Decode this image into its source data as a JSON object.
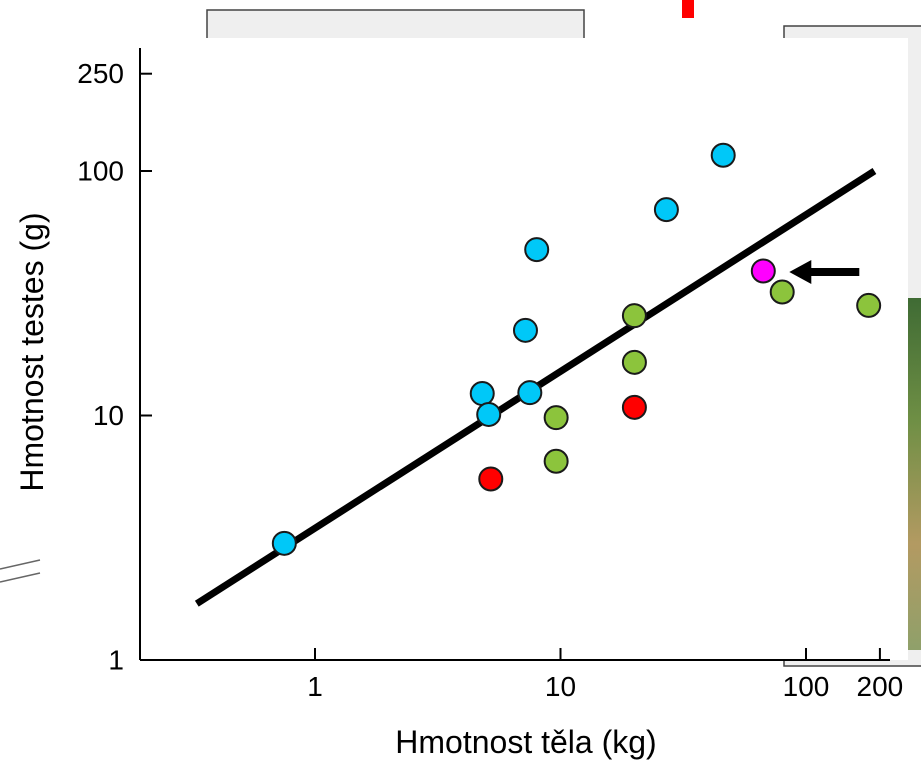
{
  "chart_data": {
    "type": "scatter",
    "title": "",
    "xlabel": "Hmotnost těla (kg)",
    "ylabel": "Hmotnost testes (g)",
    "xscale": "log",
    "yscale": "log",
    "xlim": [
      0.1,
      200
    ],
    "ylim": [
      1,
      250
    ],
    "xticks": [
      {
        "value": 1,
        "label": "1"
      },
      {
        "value": 10,
        "label": "10"
      },
      {
        "value": 100,
        "label": "100"
      },
      {
        "value": 200,
        "label": "200"
      }
    ],
    "yticks": [
      {
        "value": 1,
        "label": "1"
      },
      {
        "value": 10,
        "label": "10"
      },
      {
        "value": 100,
        "label": "100"
      },
      {
        "value": 250,
        "label": "250"
      }
    ],
    "grid": false,
    "legend": "none",
    "series": [
      {
        "color": "#00c8f8",
        "points": [
          {
            "x": 0.75,
            "y": 3.0
          },
          {
            "x": 4.8,
            "y": 12.3
          },
          {
            "x": 5.1,
            "y": 10.1
          },
          {
            "x": 7.2,
            "y": 22.3
          },
          {
            "x": 7.5,
            "y": 12.4
          },
          {
            "x": 8.0,
            "y": 47.7
          },
          {
            "x": 27.0,
            "y": 69.5
          },
          {
            "x": 46.0,
            "y": 116.0
          }
        ]
      },
      {
        "color": "#8cc43c",
        "points": [
          {
            "x": 9.6,
            "y": 9.8
          },
          {
            "x": 9.6,
            "y": 6.5
          },
          {
            "x": 20.0,
            "y": 25.6
          },
          {
            "x": 20.0,
            "y": 16.5
          },
          {
            "x": 80.0,
            "y": 32.0
          },
          {
            "x": 180.0,
            "y": 28.2
          }
        ]
      },
      {
        "color": "#ff0000",
        "points": [
          {
            "x": 5.2,
            "y": 5.5
          },
          {
            "x": 20.0,
            "y": 10.8
          }
        ]
      },
      {
        "color": "#ff00ff",
        "points": [
          {
            "x": 67.0,
            "y": 39.0
          }
        ]
      }
    ],
    "regression_line": {
      "x": [
        0.33,
        190.0
      ],
      "y": [
        1.7,
        100.0
      ],
      "color": "#000000"
    },
    "annotations": [
      {
        "type": "arrow",
        "points_to": {
          "x": 67.0,
          "y": 39.0
        },
        "color": "#000000"
      }
    ]
  },
  "colors": {
    "axis": "#000000",
    "marker_stroke": "#1a1a1a",
    "background": "#ffffff",
    "side_panel": "#efefef",
    "accent_red": "#ff0000"
  }
}
